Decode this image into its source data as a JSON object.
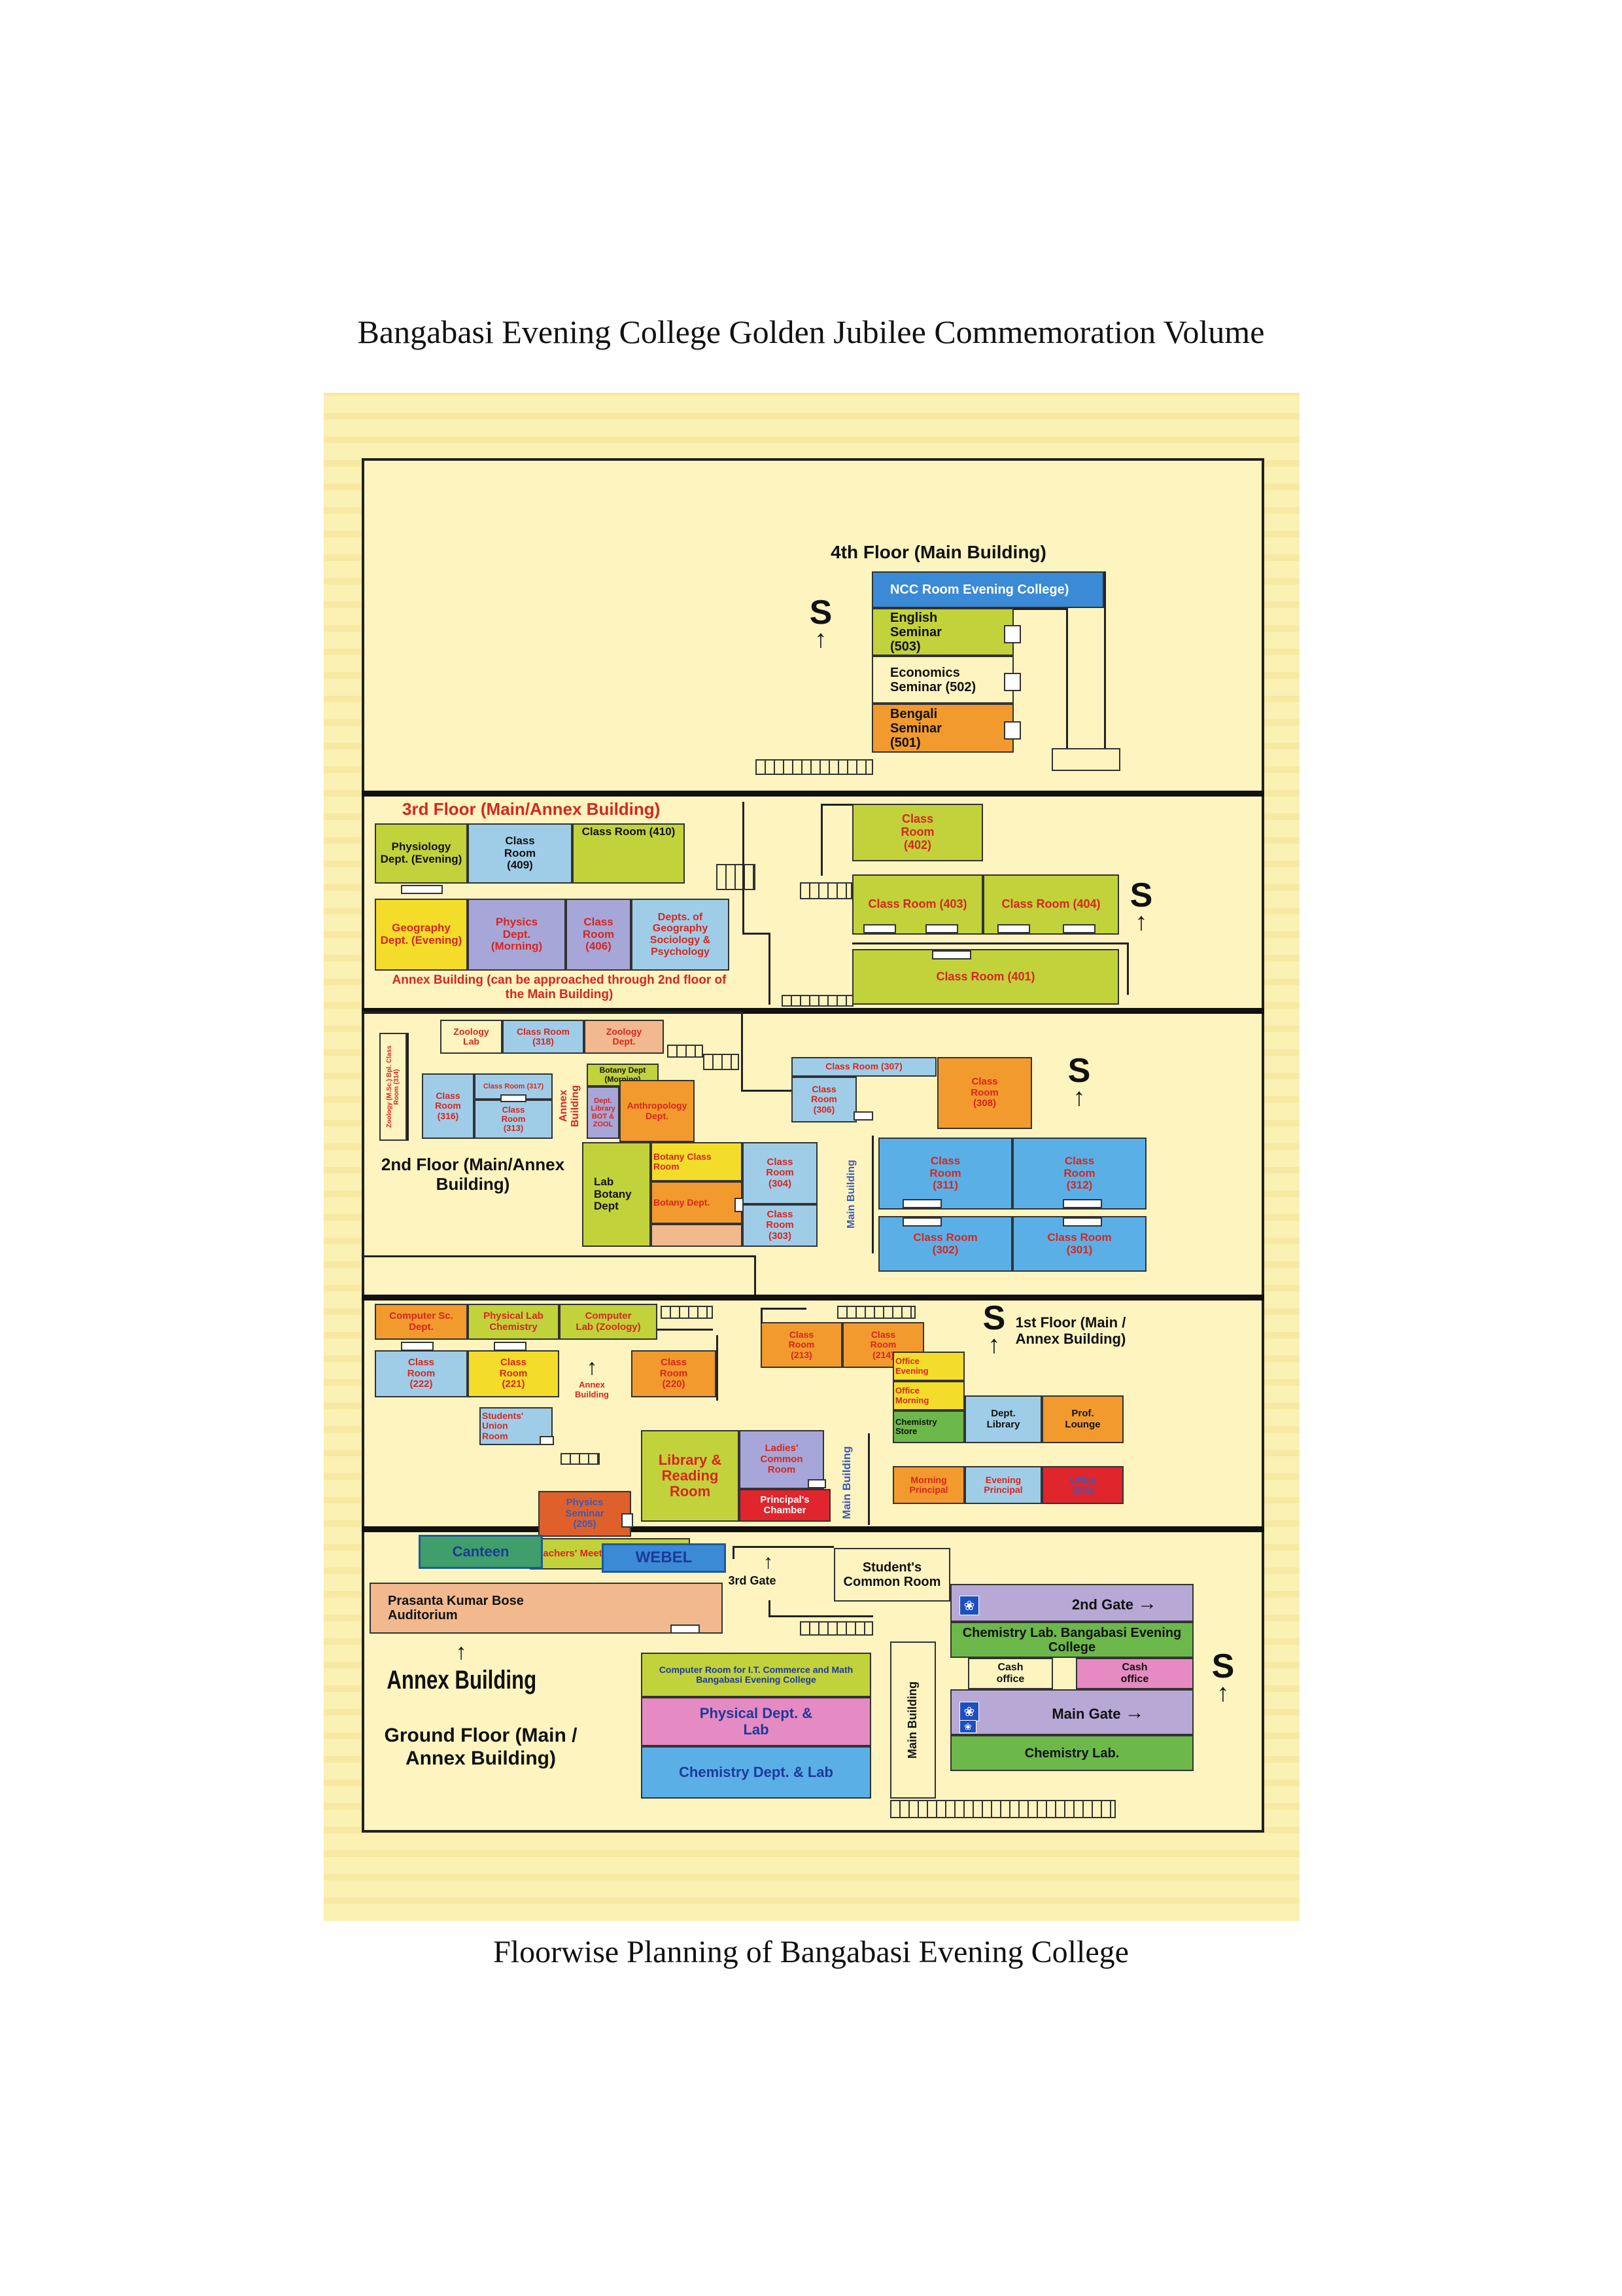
{
  "header": "Bangabasi Evening College Golden Jubilee Commemoration Volume",
  "caption": "Floorwise Planning of Bangabasi Evening College",
  "stair_symbol": "S",
  "arrow_up": "↑",
  "arrow_right": "→",
  "logo_glyph": "❀",
  "floor4": {
    "title": "4th Floor (Main Building)",
    "ncc": "NCC Room Evening College)",
    "english": "English Seminar (503)",
    "economics": "Economics Seminar (502)",
    "bengali": "Bengali Seminar (501)"
  },
  "floor3": {
    "title": "3rd Floor (Main/Annex Building)",
    "physiology": "Physiology Dept. (Evening)",
    "cr409": "Class Room (409)",
    "cr410": "Class Room (410)",
    "geography": "Geography Dept. (Evening)",
    "physics": "Physics Dept. (Morning)",
    "cr406": "Class Room (406)",
    "depts": "Depts. of Geography Sociology & Psychology",
    "annex_note": "Annex Building (can be approached through 2nd floor of the Main Building)",
    "cr402": "Class Room (402)",
    "cr403": "Class Room (403)",
    "cr404": "Class Room (404)",
    "cr401": "Class Room (401)"
  },
  "floor2": {
    "title": "2nd Floor (Main/Annex Building)",
    "zoology_lab": "Zoology Lab",
    "cr318": "Class Room (318)",
    "zoology_dept": "Zoology Dept.",
    "zoology_class": "Zoology (M.Sc.) Bpl. Class Room (314)",
    "cr316": "Class Room (316)",
    "cr317": "Class Room (317)",
    "cr313": "Class Room (313)",
    "annex_building": "Annex Building",
    "botany_morning": "Botany Dept (Morning)",
    "dept_library": "Dept. Library BOT & ZOOL",
    "anthropology": "Anthropology Dept.",
    "lab_botany": "Lab Botany Dept",
    "botany_class": "Botany Class Room",
    "botany_dept": "Botany Dept.",
    "cr304": "Class Room (304)",
    "cr303": "Class Room (303)",
    "cr307": "Class Room (307)",
    "cr306": "Class Room (306)",
    "cr308": "Class Room (308)",
    "main_building": "Main Building",
    "cr311": "Class Room (311)",
    "cr312": "Class Room (312)",
    "cr302": "Class Room (302)",
    "cr301": "Class Room (301)"
  },
  "floor1": {
    "title": "1st Floor (Main / Annex Building)",
    "computer_sc": "Computer Sc. Dept.",
    "physical_lab": "Physical Lab Chemistry",
    "computer_lab": "Computer Lab (Zoology)",
    "cr222": "Class Room (222)",
    "cr221": "Class Room (221)",
    "annex_building": "Annex Building",
    "cr220": "Class Room (220)",
    "cr213": "Class Room (213)",
    "cr214": "Class Room (214)",
    "students_union": "Students' Union Room",
    "library": "Library & Reading Room",
    "ladies": "Ladies' Common Room",
    "main_building": "Main Building",
    "physics_seminar": "Physics Seminar (205)",
    "principal": "Principal's Chamber",
    "teachers": "Teachers' Meeting Room",
    "office_evening": "Office Evening",
    "office_morning": "Office Morning",
    "chemistry_store": "Chemistry Store",
    "dept_library": "Dept. Library",
    "prof_lounge": "Prof. Lounge",
    "morning_principal": "Morning Principal",
    "evening_principal": "Evening Principal",
    "office201": "Office (201)"
  },
  "ground": {
    "title": "Ground Floor (Main / Annex Building)",
    "canteen": "Canteen",
    "webel": "WEBEL",
    "third_gate": "3rd Gate",
    "students_common": "Student's Common Room",
    "auditorium": "Prasanta Kumar Bose Auditorium",
    "annex_building": "Annex Building",
    "computer_room": "Computer Room for I.T. Commerce and Math Bangabasi Evening College",
    "physical_dept": "Physical Dept. & Lab",
    "chemistry_dept": "Chemistry Dept. & Lab",
    "main_building": "Main Building",
    "second_gate": "2nd Gate",
    "chem_lab_college": "Chemistry Lab. Bangabasi Evening College",
    "cash_office_1": "Cash office",
    "cash_office_2": "Cash office",
    "main_gate": "Main Gate",
    "chemistry_lab": "Chemistry Lab."
  },
  "colors": {
    "yellow_green": "#c2d23a",
    "orange": "#f29a2e",
    "blue": "#3a8ad6",
    "light_blue": "#9fcde8",
    "lavender": "#a6a6d8",
    "peach": "#f2b98f",
    "pink": "#e58ac2",
    "red": "#e0252c",
    "green": "#6cb84a",
    "sky": "#5ab0e6",
    "purple": "#b7a8d6",
    "yellow": "#f4dc2a"
  }
}
